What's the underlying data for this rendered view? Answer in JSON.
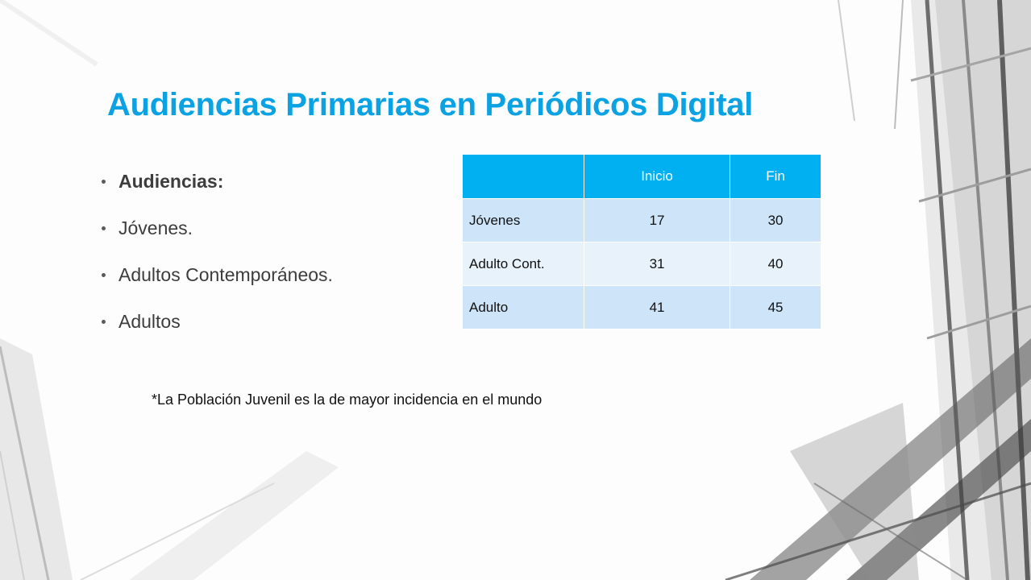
{
  "slide": {
    "title": "Audiencias Primarias en Periódicos Digital",
    "bullets": [
      "Audiencias:",
      "Jóvenes.",
      "Adultos Contemporáneos.",
      "Adultos"
    ],
    "note": "*La Población Juvenil es la de mayor incidencia en el mundo"
  },
  "table": {
    "headers": [
      "",
      "Inicio",
      "Fin"
    ],
    "rows": [
      {
        "label": "Jóvenes",
        "inicio": "17",
        "fin": "30"
      },
      {
        "label": "Adulto Cont.",
        "inicio": "31",
        "fin": "40"
      },
      {
        "label": "Adulto",
        "inicio": "41",
        "fin": "45"
      }
    ]
  },
  "colors": {
    "title": "#0aa2e2",
    "table_header": "#00b0f0",
    "row_dark": "#cde4f9",
    "row_light": "#e8f2fb"
  }
}
